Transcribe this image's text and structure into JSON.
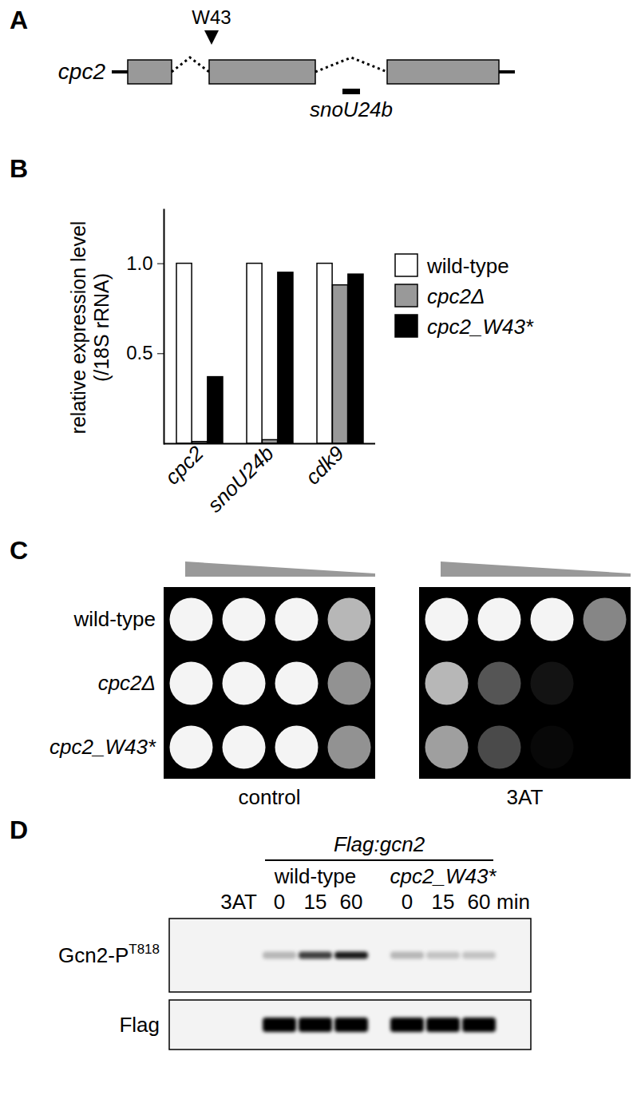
{
  "panel_a": {
    "label": "A",
    "gene": "cpc2",
    "mutation_site": "W43",
    "snorna": "snoU24b"
  },
  "chart_data": {
    "label": "B",
    "type": "bar",
    "categories": [
      "cpc2",
      "snoU24b",
      "cdk9"
    ],
    "ylabel": [
      "relative expression level",
      "(/18S rRNA)"
    ],
    "series": [
      {
        "name": "wild-type",
        "color": "#ffffff",
        "values": [
          1,
          1,
          1
        ]
      },
      {
        "name": "cpc2Δ",
        "color": "#999999",
        "values": [
          0.01,
          0.02,
          0.88
        ]
      },
      {
        "name": "cpc2_W43*",
        "color": "#000000",
        "values": [
          0.37,
          0.95,
          0.94
        ]
      }
    ],
    "ylim": [
      0,
      1.3
    ],
    "yticks": [
      0.5,
      1
    ],
    "legend": "right"
  },
  "panel_c": {
    "label": "C",
    "strains": [
      "wild-type",
      "cpc2Δ",
      "cpc2_W43*"
    ],
    "conditions": [
      {
        "name": "control",
        "growth": [
          [
            1,
            1,
            1,
            0.75
          ],
          [
            1,
            1,
            1,
            0.6
          ],
          [
            1,
            1,
            1,
            0.6
          ]
        ]
      },
      {
        "name": "3AT",
        "growth": [
          [
            1,
            1,
            1,
            0.55
          ],
          [
            0.75,
            0.35,
            0.08,
            0
          ],
          [
            0.65,
            0.3,
            0.03,
            0
          ]
        ]
      }
    ]
  },
  "panel_d": {
    "label": "D",
    "construct": "Flag:gcn2",
    "strains": [
      "wild-type",
      "cpc2_W43*"
    ],
    "treatment": "3AT",
    "timepoints": [
      0,
      15,
      60
    ],
    "time_unit": "min",
    "rows": [
      {
        "label": "Gcn2-P",
        "superscript": "T818",
        "intensity": [
          [
            0.25,
            0.75,
            0.9
          ],
          [
            0.25,
            0.2,
            0.2
          ]
        ]
      },
      {
        "label": "Flag",
        "intensity": [
          [
            1,
            1,
            1
          ],
          [
            1,
            1,
            1
          ]
        ]
      }
    ]
  }
}
